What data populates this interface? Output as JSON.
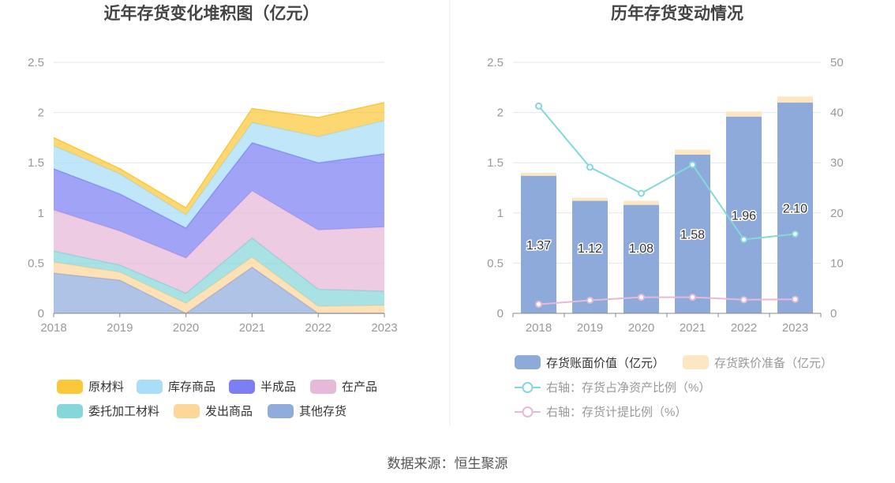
{
  "source": "数据来源：恒生聚源",
  "chart_data": [
    {
      "type": "area",
      "stacked": true,
      "title": "近年存货变化堆积图（亿元）",
      "categories": [
        "2018",
        "2019",
        "2020",
        "2021",
        "2022",
        "2023"
      ],
      "ylim": [
        0,
        2.5
      ],
      "yticks": [
        "0",
        "0.5",
        "1",
        "1.5",
        "2",
        "2.5"
      ],
      "grid": true,
      "legend_position": "bottom",
      "series": [
        {
          "name": "其他存货",
          "color": "#8facdc",
          "values": [
            0.4,
            0.33,
            0.0,
            0.46,
            0.0,
            0.0
          ]
        },
        {
          "name": "发出商品",
          "color": "#fdd69a",
          "values": [
            0.11,
            0.08,
            0.1,
            0.1,
            0.07,
            0.08
          ]
        },
        {
          "name": "委托加工材料",
          "color": "#86d7d9",
          "values": [
            0.11,
            0.07,
            0.1,
            0.19,
            0.17,
            0.14
          ]
        },
        {
          "name": "在产品",
          "color": "#e6b9d8",
          "values": [
            0.41,
            0.34,
            0.35,
            0.47,
            0.59,
            0.64
          ]
        },
        {
          "name": "半成品",
          "color": "#7b7ff3",
          "values": [
            0.41,
            0.37,
            0.3,
            0.48,
            0.67,
            0.73
          ]
        },
        {
          "name": "库存商品",
          "color": "#a8def7",
          "values": [
            0.23,
            0.2,
            0.13,
            0.2,
            0.26,
            0.33
          ]
        },
        {
          "name": "原材料",
          "color": "#fbc83b",
          "values": [
            0.08,
            0.05,
            0.07,
            0.14,
            0.19,
            0.18
          ]
        }
      ]
    },
    {
      "type": "bar",
      "stacked": true,
      "title": "历年存货变动情况",
      "categories": [
        "2018",
        "2019",
        "2020",
        "2021",
        "2022",
        "2023"
      ],
      "ylim": [
        0,
        2.5
      ],
      "yticks": [
        "0",
        "0.5",
        "1",
        "1.5",
        "2",
        "2.5"
      ],
      "y2lim": [
        0,
        50
      ],
      "y2ticks": [
        "0",
        "10",
        "20",
        "30",
        "40",
        "50"
      ],
      "grid": true,
      "legend_position": "bottom",
      "series": [
        {
          "name": "存货账面价值（亿元）",
          "color": "#8eaadb",
          "values": [
            1.37,
            1.12,
            1.08,
            1.58,
            1.96,
            2.1
          ],
          "labels": [
            "1.37",
            "1.12",
            "1.08",
            "1.58",
            "1.96",
            "2.10"
          ]
        },
        {
          "name": "存货跌价准备（亿元）",
          "color": "#fde6c2",
          "values": [
            0.03,
            0.03,
            0.04,
            0.05,
            0.05,
            0.06
          ]
        }
      ],
      "line_series": [
        {
          "name": "右轴：存货占净资产比例（%）",
          "color": "#86d7d9",
          "axis": "right",
          "values": [
            41.3,
            29.1,
            23.9,
            29.6,
            14.7,
            15.8
          ]
        },
        {
          "name": "右轴：存货计提比例（%）",
          "color": "#e6b9d8",
          "axis": "right",
          "values": [
            1.8,
            2.6,
            3.2,
            3.2,
            2.7,
            2.8
          ]
        }
      ]
    }
  ]
}
